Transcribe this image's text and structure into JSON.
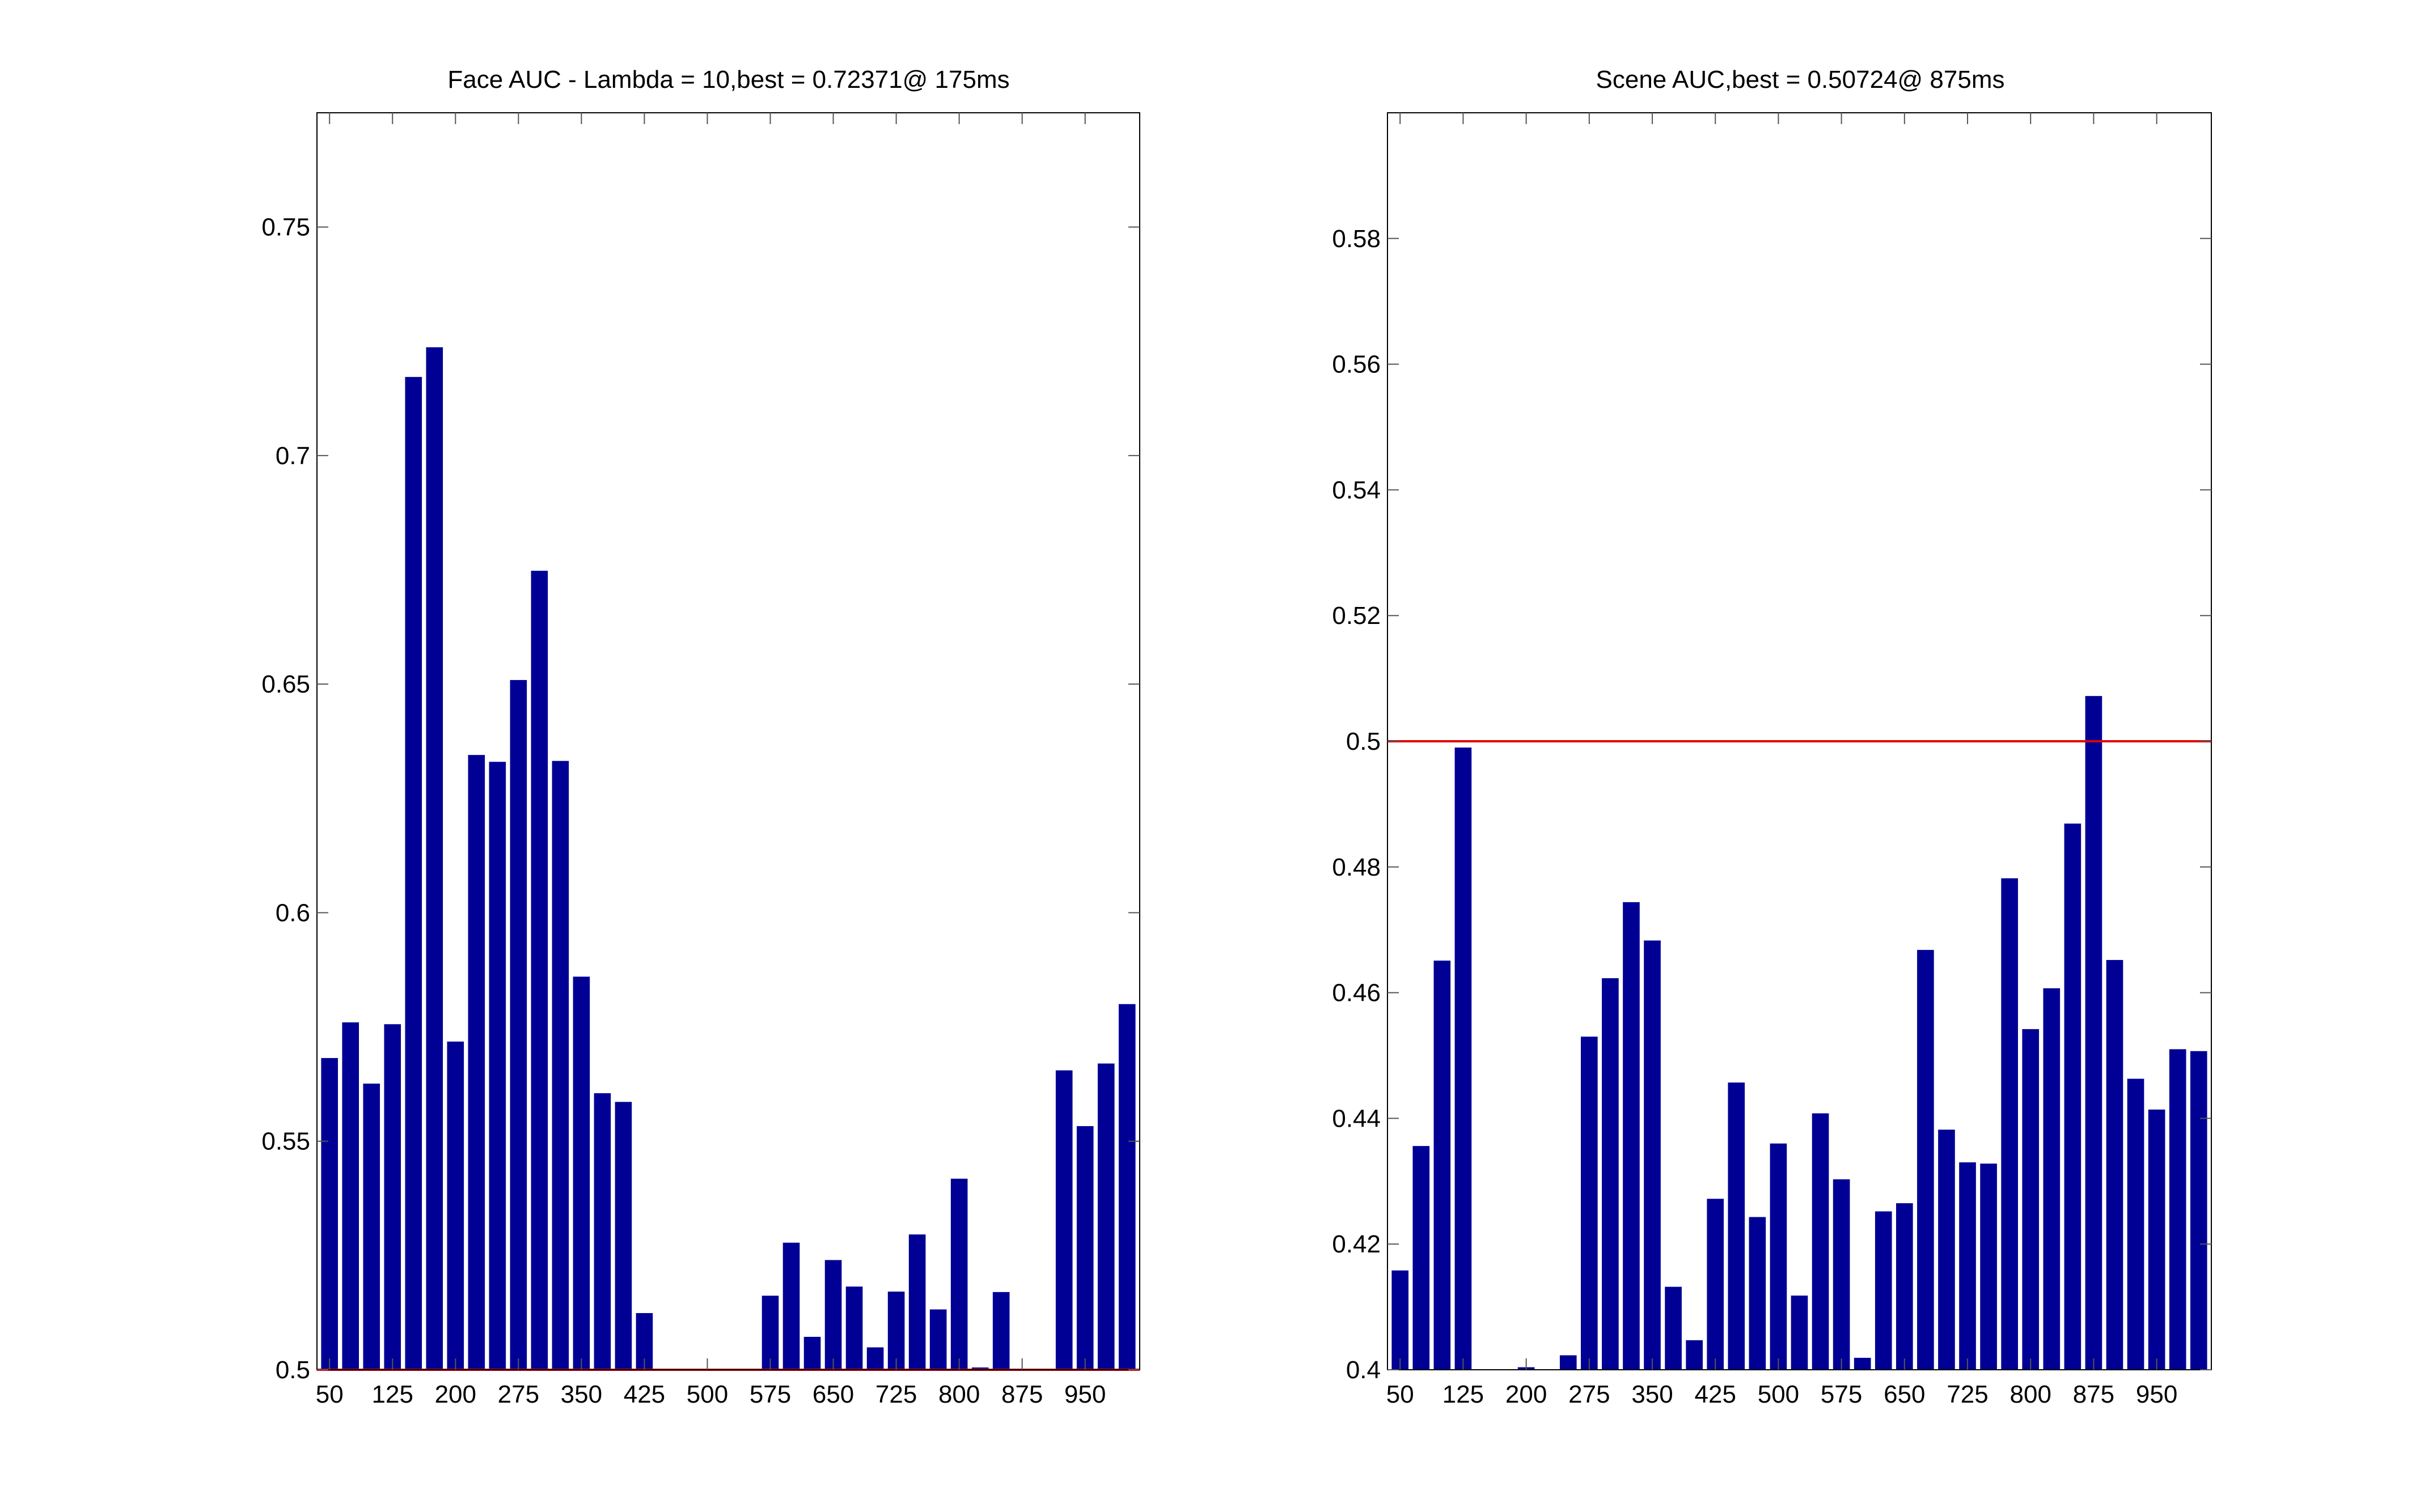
{
  "figure": {
    "colors": {
      "bar": "#000095",
      "reference_line": "#e00000",
      "axes": "#000000",
      "tick": "#555555"
    }
  },
  "chart_data": [
    {
      "type": "bar",
      "title": "Face AUC - Lambda = 10,best = 0.72371@ 175ms",
      "xlabel": "",
      "ylabel": "",
      "x": [
        50,
        75,
        100,
        125,
        150,
        175,
        200,
        225,
        250,
        275,
        300,
        325,
        350,
        375,
        400,
        425,
        450,
        475,
        500,
        525,
        550,
        575,
        600,
        625,
        650,
        675,
        700,
        725,
        750,
        775,
        800,
        825,
        850,
        875,
        900,
        925,
        950,
        975,
        1000
      ],
      "values": [
        0.5682,
        0.576,
        0.5626,
        0.5756,
        0.7172,
        0.7237,
        0.5718,
        0.6345,
        0.633,
        0.6509,
        0.6748,
        0.6332,
        0.586,
        0.5605,
        0.5586,
        0.5124,
        0.5,
        0.5,
        0.5,
        0.5,
        0.5,
        0.5162,
        0.5278,
        0.5072,
        0.524,
        0.5182,
        0.5049,
        0.5171,
        0.5296,
        0.5132,
        0.5418,
        0.5005,
        0.517,
        0.5,
        0.5,
        0.5655,
        0.5533,
        0.567,
        0.58
      ],
      "xticks": [
        "50",
        "125",
        "200",
        "275",
        "350",
        "425",
        "500",
        "575",
        "650",
        "725",
        "800",
        "875",
        "950"
      ],
      "yticks": [
        "0.5",
        "0.55",
        "0.6",
        "0.65",
        "0.7",
        "0.75"
      ],
      "xlim": [
        35,
        1015
      ],
      "ylim": [
        0.5,
        0.775
      ],
      "reference_line": 0.5,
      "grid": false
    },
    {
      "type": "bar",
      "title": "Scene AUC,best = 0.50724@ 875ms",
      "xlabel": "",
      "ylabel": "",
      "x": [
        50,
        75,
        100,
        125,
        150,
        175,
        200,
        225,
        250,
        275,
        300,
        325,
        350,
        375,
        400,
        425,
        450,
        475,
        500,
        525,
        550,
        575,
        600,
        625,
        650,
        675,
        700,
        725,
        750,
        775,
        800,
        825,
        850,
        875,
        900,
        925,
        950,
        975,
        1000
      ],
      "values": [
        0.4158,
        0.4356,
        0.4651,
        0.499,
        0.4,
        0.4,
        0.4004,
        0.4,
        0.4023,
        0.453,
        0.4623,
        0.4744,
        0.4683,
        0.4132,
        0.4047,
        0.4272,
        0.4457,
        0.4243,
        0.436,
        0.4118,
        0.4408,
        0.4303,
        0.4019,
        0.4252,
        0.4265,
        0.4668,
        0.4382,
        0.433,
        0.4328,
        0.4782,
        0.4542,
        0.4607,
        0.4869,
        0.5072,
        0.4652,
        0.4463,
        0.4414,
        0.451,
        0.4507
      ],
      "xticks": [
        "50",
        "125",
        "200",
        "275",
        "350",
        "425",
        "500",
        "575",
        "650",
        "725",
        "800",
        "875",
        "950"
      ],
      "yticks": [
        "0.4",
        "0.42",
        "0.44",
        "0.46",
        "0.48",
        "0.5",
        "0.52",
        "0.54",
        "0.56",
        "0.58"
      ],
      "xlim": [
        35,
        1015
      ],
      "ylim": [
        0.4,
        0.6
      ],
      "reference_line": 0.5,
      "grid": false
    }
  ]
}
